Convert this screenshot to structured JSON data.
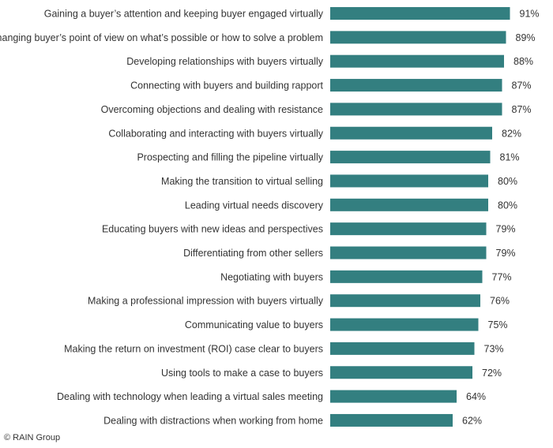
{
  "chart_data": {
    "type": "bar",
    "orientation": "horizontal",
    "categories": [
      "Gaining a buyer’s attention and keeping buyer engaged virtually",
      "Changing buyer’s point of view on what’s possible or how to solve a problem",
      "Developing relationships with buyers virtually",
      "Connecting with buyers and building rapport",
      "Overcoming objections and dealing with resistance",
      "Collaborating and interacting with buyers virtually",
      "Prospecting and filling the pipeline virtually",
      "Making the transition to virtual selling",
      "Leading virtual needs discovery",
      "Educating buyers with new ideas and perspectives",
      "Differentiating from other sellers",
      "Negotiating with buyers",
      "Making a professional impression with buyers virtually",
      "Communicating value to buyers",
      "Making the return on investment (ROI) case clear to buyers",
      "Using tools to make a case to buyers",
      "Dealing with technology when leading a virtual sales meeting",
      "Dealing with distractions when working from home"
    ],
    "values": [
      91,
      89,
      88,
      87,
      87,
      82,
      81,
      80,
      80,
      79,
      79,
      77,
      76,
      75,
      73,
      72,
      64,
      62
    ],
    "value_labels": [
      "91%",
      "89%",
      "88%",
      "87%",
      "87%",
      "82%",
      "81%",
      "80%",
      "80%",
      "79%",
      "79%",
      "77%",
      "76%",
      "75%",
      "73%",
      "72%",
      "64%",
      "62%"
    ],
    "xlim": [
      0,
      100
    ],
    "bar_color": "#337f80",
    "title": "",
    "xlabel": "",
    "ylabel": "",
    "grid": false,
    "legend": "none"
  },
  "footer": {
    "copyright": "© RAIN Group"
  }
}
